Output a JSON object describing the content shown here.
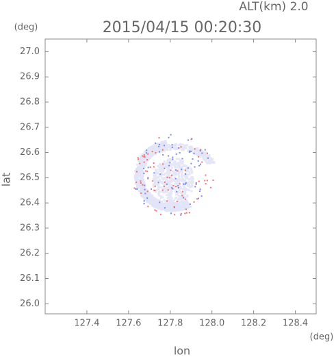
{
  "chart_data": {
    "type": "radar-map",
    "title": "2015/04/15 00:20:30",
    "altitude_label": "ALT(km) 2.0",
    "x_label": "lon",
    "y_label": "lat",
    "x_unit": "(deg)",
    "y_unit": "(deg)",
    "xlim": [
      127.2,
      128.5
    ],
    "ylim": [
      25.96,
      27.05
    ],
    "xticks": [
      127.4,
      127.6,
      127.8,
      {
        "value": 128.0,
        "label": "128.0"
      },
      128.2,
      128.4
    ],
    "yticks": [
      {
        "value": 26.0,
        "label": "26.0"
      },
      26.1,
      26.2,
      26.3,
      26.4,
      26.5,
      26.6,
      26.7,
      26.8,
      26.9,
      {
        "value": 27.0,
        "label": "27.0"
      }
    ]
  }
}
